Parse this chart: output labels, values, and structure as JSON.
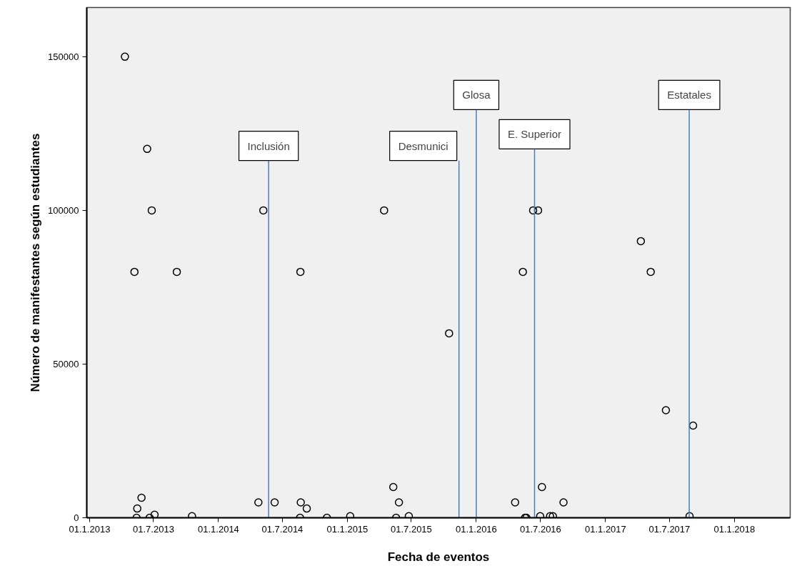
{
  "chart_data": {
    "type": "scatter",
    "xlabel": "Fecha de eventos",
    "ylabel": "Número de manifestantes según estudiantes",
    "x": [
      "2013-04-11",
      "2013-05-08",
      "2013-05-14",
      "2013-05-16",
      "2013-05-28",
      "2013-06-13",
      "2013-06-20",
      "2013-06-26",
      "2013-07-04",
      "2013-09-05",
      "2013-10-18",
      "2014-04-24",
      "2014-05-08",
      "2014-06-09",
      "2014-08-20",
      "2014-08-21",
      "2014-08-22",
      "2014-09-08",
      "2014-11-04",
      "2015-01-09",
      "2015-04-15",
      "2015-05-11",
      "2015-05-19",
      "2015-05-27",
      "2015-06-24",
      "2015-10-16",
      "2016-04-20",
      "2016-05-12",
      "2016-05-18",
      "2016-05-22",
      "2016-06-10",
      "2016-06-24",
      "2016-06-30",
      "2016-07-05",
      "2016-07-28",
      "2016-08-05",
      "2016-09-04",
      "2017-04-11",
      "2017-05-09",
      "2017-06-21",
      "2017-08-27",
      "2017-09-06"
    ],
    "series": [
      {
        "color": "#000000",
        "values": [
          150000,
          80000,
          0,
          3000,
          6500,
          120000,
          0,
          100000,
          1000,
          80000,
          500,
          5000,
          100000,
          5000,
          0,
          80000,
          5000,
          3000,
          0,
          500,
          100000,
          10000,
          0,
          5000,
          500,
          60000,
          5000,
          80000,
          0,
          0,
          100000,
          100000,
          500,
          10000,
          500,
          500,
          5000,
          90000,
          80000,
          35000,
          500,
          30000
        ]
      }
    ],
    "marker": "circle",
    "grid": false,
    "xlim": [
      "2012-12-24",
      "2018-06-08"
    ],
    "xticks": [
      {
        "value": "2013-01-01",
        "label": "01.1.2013"
      },
      {
        "value": "2013-07-01",
        "label": "01.7.2013"
      },
      {
        "value": "2014-01-01",
        "label": "01.1.2014"
      },
      {
        "value": "2014-07-01",
        "label": "01.7.2014"
      },
      {
        "value": "2015-01-01",
        "label": "01.1.2015"
      },
      {
        "value": "2015-07-01",
        "label": "01.7.2015"
      },
      {
        "value": "2016-01-01",
        "label": "01.1.2016"
      },
      {
        "value": "2016-07-01",
        "label": "01.7.2016"
      },
      {
        "value": "2017-01-01",
        "label": "01.1.2017"
      },
      {
        "value": "2017-07-01",
        "label": "01.7.2017"
      },
      {
        "value": "2018-01-01",
        "label": "01.1.2018"
      }
    ],
    "ylim": [
      0,
      166000
    ],
    "yticks": [
      0,
      50000,
      100000,
      150000
    ],
    "ref_lines": [
      {
        "axis": "x",
        "value": "2014-05-23",
        "label": "Inclusión",
        "color": "#4a7ebb"
      },
      {
        "axis": "x",
        "value": "2015-11-13",
        "label": "Desmunici",
        "color": "#4a7ebb"
      },
      {
        "axis": "x",
        "value": "2016-01-01",
        "label": "Glosa",
        "color": "#4a7ebb"
      },
      {
        "axis": "x",
        "value": "2016-06-14",
        "label": "E. Superior",
        "color": "#4a7ebb"
      },
      {
        "axis": "x",
        "value": "2017-08-26",
        "label": "Estatales",
        "color": "#4a7ebb"
      }
    ]
  }
}
